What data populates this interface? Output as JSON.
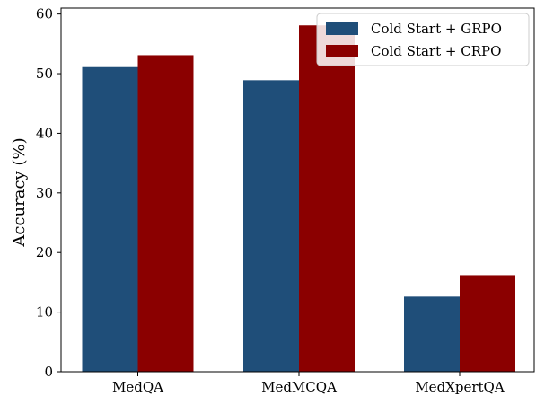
{
  "chart_data": {
    "type": "bar",
    "title": "",
    "xlabel": "",
    "ylabel": "Accuracy (%)",
    "categories": [
      "MedQA",
      "MedMCQA",
      "MedXpertQA"
    ],
    "series": [
      {
        "name": "Cold Start + GRPO",
        "color": "#1f4e79",
        "values": [
          51.1,
          48.9,
          12.6
        ]
      },
      {
        "name": "Cold Start + CRPO",
        "color": "#8b0000",
        "values": [
          53.1,
          58.1,
          16.2
        ]
      }
    ],
    "ylim": [
      0,
      61
    ],
    "yticks": [
      0,
      10,
      20,
      30,
      40,
      50,
      60
    ],
    "grid": false,
    "legend": "top-right"
  }
}
